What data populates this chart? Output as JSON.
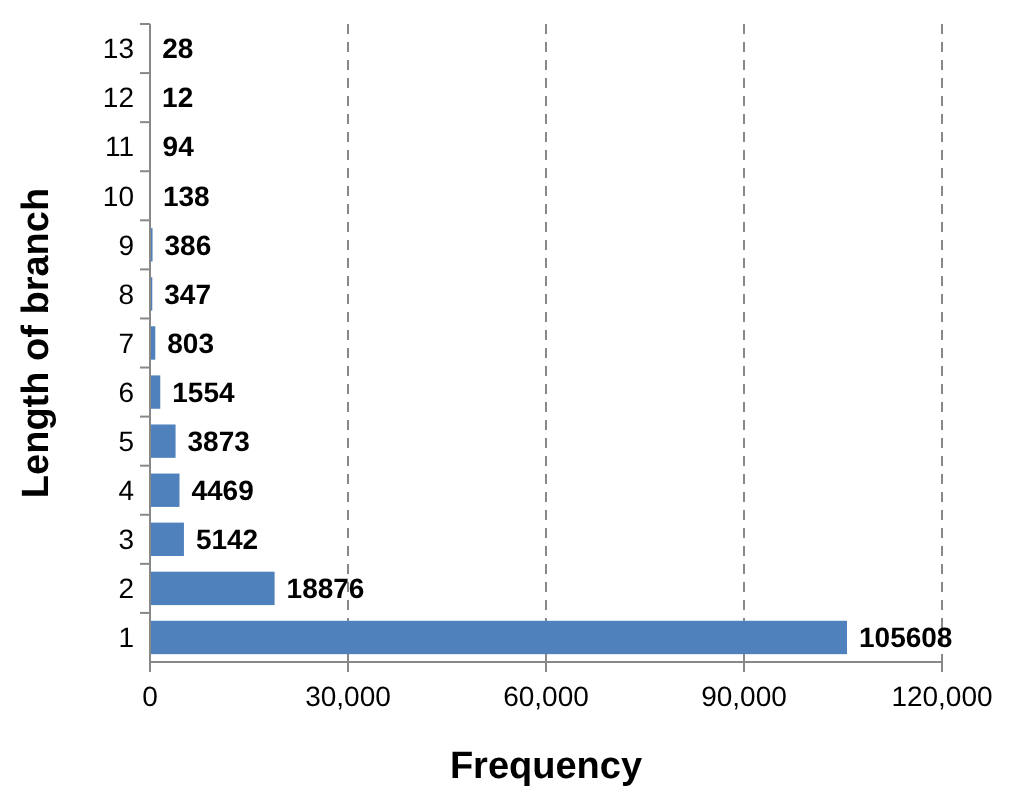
{
  "chart_data": {
    "type": "bar",
    "orientation": "horizontal",
    "xlabel": "Frequency",
    "ylabel": "Length of branch",
    "categories": [
      "13",
      "12",
      "11",
      "10",
      "9",
      "8",
      "7",
      "6",
      "5",
      "4",
      "3",
      "2",
      "1"
    ],
    "values": [
      28,
      12,
      94,
      138,
      386,
      347,
      803,
      1554,
      3873,
      4469,
      5142,
      18876,
      105608
    ],
    "color": "#4f81bd",
    "xlim": [
      0,
      120000
    ],
    "xticks": [
      0,
      {
        "value": 30000,
        "label": "30,000"
      },
      {
        "value": 60000,
        "label": "60,000"
      },
      {
        "value": 90000,
        "label": "90,000"
      },
      {
        "value": 120000,
        "label": "120,000"
      }
    ],
    "grid": "x",
    "line_style": "dashed",
    "data_labels": true
  }
}
